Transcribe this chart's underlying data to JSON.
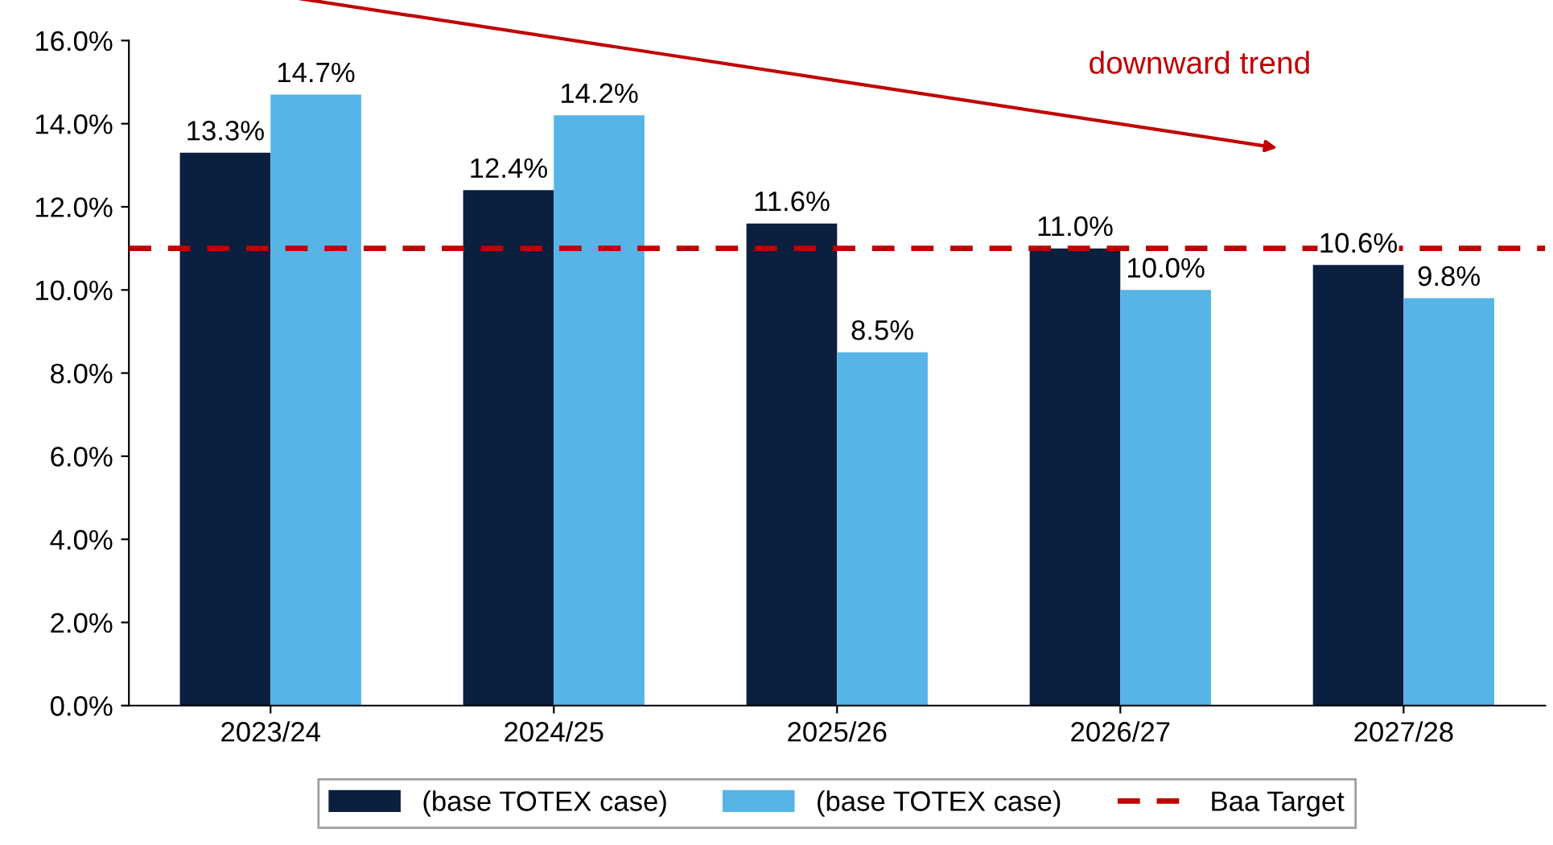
{
  "chart_data": {
    "type": "bar",
    "categories": [
      "2023/24",
      "2024/25",
      "2025/26",
      "2026/27",
      "2027/28"
    ],
    "series": [
      {
        "name": "(base TOTEX case)",
        "color": "#0b1f3f",
        "values": [
          13.3,
          12.4,
          11.6,
          11.0,
          10.6
        ],
        "value_labels": [
          "13.3%",
          "12.4%",
          "11.6%",
          "11.0%",
          "10.6%"
        ]
      },
      {
        "name": "(base TOTEX case)",
        "color": "#56b4e6",
        "values": [
          14.7,
          14.2,
          8.5,
          10.0,
          9.8
        ],
        "value_labels": [
          "14.7%",
          "14.2%",
          "8.5%",
          "10.0%",
          "9.8%"
        ]
      }
    ],
    "ylim": [
      0,
      16
    ],
    "yticks": [
      {
        "value": 0,
        "label": "0.0%"
      },
      {
        "value": 2,
        "label": "2.0%"
      },
      {
        "value": 4,
        "label": "4.0%"
      },
      {
        "value": 6,
        "label": "6.0%"
      },
      {
        "value": 8,
        "label": "8.0%"
      },
      {
        "value": 10,
        "label": "10.0%"
      },
      {
        "value": 12,
        "label": "12.0%"
      },
      {
        "value": 14,
        "label": "14.0%"
      },
      {
        "value": 16,
        "label": "16.0%"
      }
    ],
    "ref_lines": [
      {
        "axis": "y",
        "value": 11.0,
        "label": "Baa Target",
        "color": "#c00000",
        "line_style": "dashed"
      }
    ],
    "annotations": [
      "downward trend"
    ],
    "grid": false,
    "legend": "bottom"
  }
}
